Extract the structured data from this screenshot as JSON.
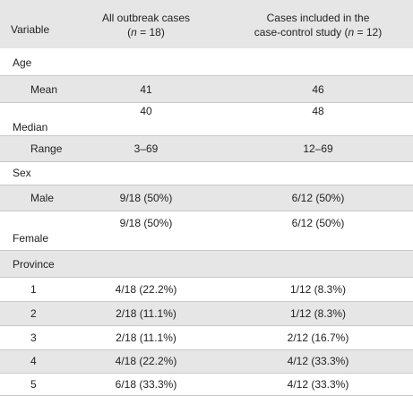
{
  "header": {
    "col1": "Variable",
    "col2_line1": "All outbreak cases",
    "col2_line2_pre": "(",
    "col2_n": "n",
    "col2_line2_post": " = 18)",
    "col3_line1": "Cases included in the",
    "col3_line2_pre": "case-control study (",
    "col3_n": "n",
    "col3_line2_post": " = 12)"
  },
  "sections": {
    "age": "Age",
    "sex": "Sex",
    "province": "Province"
  },
  "rows": {
    "mean": {
      "label": "Mean",
      "all": "41",
      "study": "46"
    },
    "median": {
      "label": "Median",
      "all": "40",
      "study": "48"
    },
    "range": {
      "label": "Range",
      "all": "3–69",
      "study": "12–69"
    },
    "male": {
      "label": "Male",
      "all": "9/18 (50%)",
      "study": "6/12 (50%)"
    },
    "female": {
      "label": "Female",
      "all": "9/18 (50%)",
      "study": "6/12 (50%)"
    },
    "p1": {
      "label": "1",
      "all": "4/18 (22.2%)",
      "study": "1/12 (8.3%)"
    },
    "p2": {
      "label": "2",
      "all": "2/18 (11.1%)",
      "study": "1/12 (8.3%)"
    },
    "p3": {
      "label": "3",
      "all": "2/18 (11.1%)",
      "study": "2/12 (16.7%)"
    },
    "p4": {
      "label": "4",
      "all": "4/18 (22.2%)",
      "study": "4/12 (33.3%)"
    },
    "p5": {
      "label": "5",
      "all": "6/18 (33.3%)",
      "study": "4/12 (33.3%)"
    }
  }
}
